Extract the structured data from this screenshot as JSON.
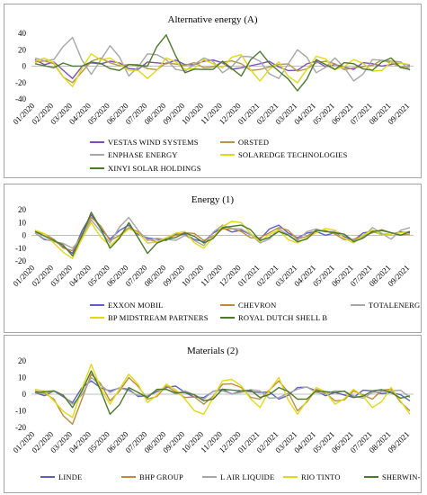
{
  "chart_data": [
    {
      "type": "line",
      "title": "Alternative energy (A)",
      "x": [
        "01/2020",
        "02/2020",
        "03/2020",
        "04/2020",
        "05/2020",
        "06/2020",
        "07/2020",
        "08/2020",
        "09/2020",
        "10/2020",
        "11/2020",
        "12/2020",
        "01/2021",
        "02/2021",
        "03/2021",
        "04/2021",
        "05/2021",
        "06/2021",
        "07/2021",
        "08/2021",
        "09/2021"
      ],
      "yticks": [
        -40,
        -20,
        0,
        20,
        40
      ],
      "ylim": [
        -40,
        40
      ],
      "legend_position": "bottom",
      "series": [
        {
          "name": "VESTAS WIND SYSTEMS",
          "color": "#7b4fc1",
          "values": [
            8,
            5,
            -15,
            4,
            6,
            -3,
            5,
            3,
            2,
            6,
            4,
            -2,
            3,
            -1,
            -5,
            6,
            2,
            -4,
            3,
            2,
            1
          ]
        },
        {
          "name": "ORSTED",
          "color": "#b8944a",
          "values": [
            5,
            3,
            -20,
            6,
            4,
            2,
            -3,
            4,
            1,
            -2,
            5,
            3,
            -4,
            2,
            -6,
            4,
            3,
            -2,
            1,
            4,
            -1
          ]
        },
        {
          "name": "ENPHASE ENERGY",
          "color": "#a6a6a6",
          "values": [
            10,
            8,
            35,
            -10,
            25,
            -12,
            15,
            8,
            -6,
            10,
            -8,
            12,
            6,
            -15,
            20,
            -8,
            10,
            -18,
            8,
            6,
            -5
          ]
        },
        {
          "name": "SOLAREDGE TECHNOLOGIES",
          "color": "#e0da16",
          "values": [
            6,
            4,
            -25,
            15,
            10,
            -5,
            -15,
            10,
            -4,
            8,
            -2,
            14,
            -18,
            5,
            -20,
            12,
            -4,
            8,
            -6,
            5,
            2
          ]
        },
        {
          "name": "XINYI SOLAR HOLDINGS",
          "color": "#4a7a2a",
          "values": [
            3,
            -2,
            0,
            5,
            -3,
            2,
            0,
            38,
            -8,
            -4,
            6,
            -12,
            18,
            -6,
            -30,
            8,
            -4,
            3,
            -5,
            10,
            -4
          ]
        }
      ]
    },
    {
      "type": "line",
      "title": "Energy (1)",
      "x": [
        "01/2020",
        "02/2020",
        "03/2020",
        "04/2020",
        "05/2020",
        "06/2020",
        "07/2020",
        "08/2020",
        "09/2020",
        "10/2020",
        "11/2020",
        "12/2020",
        "01/2021",
        "02/2021",
        "03/2021",
        "04/2021",
        "05/2021",
        "06/2021",
        "07/2021",
        "08/2021",
        "09/2021"
      ],
      "yticks": [
        -20,
        -10,
        0,
        10,
        20
      ],
      "ylim": [
        -20,
        20
      ],
      "legend_position": "bottom",
      "series": [
        {
          "name": "EXXON MOBIL",
          "color": "#5b5fc7",
          "values": [
            2,
            -4,
            -14,
            16,
            -3,
            8,
            -2,
            -4,
            1,
            -5,
            6,
            4,
            -3,
            8,
            -2,
            3,
            2,
            -4,
            3,
            1,
            2
          ]
        },
        {
          "name": "CHEVRON",
          "color": "#c08a3c",
          "values": [
            3,
            -3,
            -12,
            14,
            -4,
            6,
            -3,
            -2,
            2,
            -4,
            5,
            3,
            -2,
            6,
            -3,
            4,
            1,
            -3,
            2,
            2,
            1
          ]
        },
        {
          "name": "TOTALENERGIES",
          "color": "#a6a6a6",
          "values": [
            2,
            -5,
            -10,
            12,
            -6,
            14,
            -4,
            -3,
            0,
            -8,
            8,
            5,
            -6,
            5,
            -4,
            5,
            3,
            -4,
            6,
            -3,
            6
          ]
        },
        {
          "name": "BP MIDSTREAM PARTNERS",
          "color": "#e0da16",
          "values": [
            4,
            -6,
            -18,
            10,
            -8,
            5,
            -6,
            -2,
            3,
            -10,
            7,
            10,
            -5,
            4,
            -6,
            2,
            4,
            -6,
            4,
            1,
            3
          ]
        },
        {
          "name": "ROYAL DUTCH SHELL B",
          "color": "#4a7a2a",
          "values": [
            3,
            -4,
            -16,
            18,
            -10,
            10,
            -14,
            -3,
            2,
            -6,
            6,
            8,
            -4,
            3,
            -5,
            4,
            2,
            -5,
            3,
            2,
            3
          ]
        }
      ]
    },
    {
      "type": "line",
      "title": "Materials (2)",
      "x": [
        "01/2020",
        "02/2020",
        "03/2020",
        "04/2020",
        "05/2020",
        "06/2020",
        "07/2020",
        "08/2020",
        "09/2020",
        "10/2020",
        "11/2020",
        "12/2020",
        "01/2021",
        "02/2021",
        "03/2021",
        "04/2021",
        "05/2021",
        "06/2021",
        "07/2021",
        "08/2021",
        "09/2021"
      ],
      "yticks": [
        -20,
        -10,
        0,
        10,
        20
      ],
      "ylim": [
        -20,
        20
      ],
      "legend_position": "bottom",
      "series": [
        {
          "name": "LINDE",
          "color": "#5b5fc7",
          "values": [
            1,
            2,
            -5,
            8,
            2,
            3,
            -1,
            4,
            1,
            -2,
            3,
            2,
            1,
            -3,
            4,
            2,
            1,
            -2,
            2,
            1,
            -4
          ]
        },
        {
          "name": "BHP GROUP",
          "color": "#c08a3c",
          "values": [
            2,
            -3,
            -18,
            12,
            -4,
            10,
            -3,
            5,
            -2,
            -6,
            6,
            4,
            -3,
            8,
            -10,
            3,
            -4,
            2,
            -3,
            3,
            -10
          ]
        },
        {
          "name": "L AIR LIQUIDE",
          "color": "#a6a6a6",
          "values": [
            1,
            2,
            -6,
            10,
            1,
            2,
            -1,
            3,
            2,
            -3,
            2,
            1,
            2,
            -2,
            3,
            1,
            2,
            -1,
            1,
            2,
            -2
          ]
        },
        {
          "name": "RIO TINTO",
          "color": "#e0da16",
          "values": [
            3,
            -4,
            -14,
            18,
            -6,
            12,
            -5,
            6,
            -3,
            -12,
            8,
            5,
            -8,
            10,
            -12,
            4,
            -6,
            3,
            -8,
            4,
            -12
          ]
        },
        {
          "name": "SHERWIN-WILLIAMS",
          "color": "#4a7a2a",
          "values": [
            1,
            2,
            -8,
            14,
            -12,
            4,
            -2,
            3,
            1,
            -4,
            3,
            2,
            -2,
            4,
            -3,
            2,
            1,
            -2,
            2,
            1,
            -1
          ]
        }
      ]
    }
  ]
}
